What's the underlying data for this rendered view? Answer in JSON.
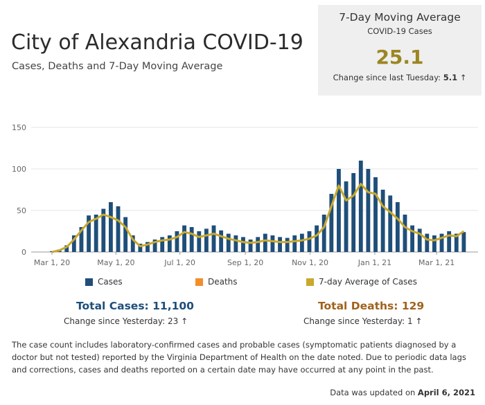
{
  "header": {
    "title": "City of Alexandria COVID-19",
    "subtitle": "Cases, Deaths and 7-Day Moving Average"
  },
  "kpi": {
    "title": "7-Day Moving Average",
    "subtitle": "COVID-19 Cases",
    "value": "25.1",
    "change_label": "Change since last Tuesday:",
    "change_value": "5.1",
    "change_arrow": "up-arrow-icon"
  },
  "legend": {
    "cases": "Cases",
    "deaths": "Deaths",
    "avg": "7-day Average of Cases"
  },
  "totals": {
    "cases_label": "Total Cases: 11,100",
    "cases_change": "Change since Yesterday: 23",
    "deaths_label": "Total Deaths: 129",
    "deaths_change": "Change since Yesterday: 1"
  },
  "footnote": "The case count includes laboratory-confirmed cases and probable cases (symptomatic patients diagnosed by a doctor but not tested) reported by the Virginia Department of Health on the date noted. Due to periodic data lags and corrections, cases and deaths reported on a certain date may have occurred at any point in the past.",
  "updated": {
    "label": "Data was updated on",
    "date": "April 6, 2021"
  },
  "colors": {
    "cases": "#1f4e79",
    "deaths": "#f28e2b",
    "avg": "#c8a92e",
    "total_cases": "#1f4e79",
    "total_deaths": "#a0621b",
    "kpi_value": "#9c8622"
  },
  "chart_data": {
    "type": "bar",
    "title": "",
    "xlabel": "",
    "ylabel": "",
    "ylim": [
      0,
      170
    ],
    "yticks": [
      0,
      50,
      100,
      150
    ],
    "x_tick_labels": [
      "Mar 1, 20",
      "May 1, 20",
      "Jul 1, 20",
      "Sep 1, 20",
      "Nov 1, 20",
      "Jan 1, 21",
      "Mar 1, 21"
    ],
    "x_tick_weeks": [
      0,
      8.7,
      17.4,
      26.3,
      35.1,
      43.9,
      52.3
    ],
    "x_unit": "weeks since Mar 1, 2020",
    "grid": true,
    "legend_position": "bottom",
    "series": [
      {
        "name": "Cases",
        "color": "#1f4e79",
        "x": [
          0,
          1,
          2,
          3,
          4,
          5,
          6,
          7,
          8,
          9,
          10,
          11,
          12,
          13,
          14,
          15,
          16,
          17,
          18,
          19,
          20,
          21,
          22,
          23,
          24,
          25,
          26,
          27,
          28,
          29,
          30,
          31,
          32,
          33,
          34,
          35,
          36,
          37,
          38,
          39,
          40,
          41,
          42,
          43,
          44,
          45,
          46,
          47,
          48,
          49,
          50,
          51,
          52,
          53,
          54,
          55,
          56
        ],
        "values": [
          1,
          3,
          8,
          20,
          30,
          44,
          45,
          52,
          60,
          55,
          42,
          20,
          10,
          12,
          15,
          18,
          20,
          25,
          32,
          30,
          25,
          28,
          32,
          26,
          22,
          20,
          18,
          15,
          18,
          22,
          20,
          18,
          17,
          20,
          22,
          25,
          32,
          45,
          70,
          100,
          85,
          95,
          110,
          100,
          90,
          75,
          68,
          60,
          45,
          32,
          28,
          22,
          20,
          22,
          25,
          22,
          24
        ]
      },
      {
        "name": "Deaths",
        "color": "#f28e2b",
        "x": [],
        "values": []
      },
      {
        "name": "7-day Average of Cases",
        "color": "#c8a92e",
        "x": [
          0,
          1,
          2,
          3,
          4,
          5,
          6,
          7,
          8,
          9,
          10,
          11,
          12,
          13,
          14,
          15,
          16,
          17,
          18,
          19,
          20,
          21,
          22,
          23,
          24,
          25,
          26,
          27,
          28,
          29,
          30,
          31,
          32,
          33,
          34,
          35,
          36,
          37,
          38,
          39,
          40,
          41,
          42,
          43,
          44,
          45,
          46,
          47,
          48,
          49,
          50,
          51,
          52,
          53,
          54,
          55,
          56
        ],
        "values": [
          0,
          2,
          6,
          15,
          26,
          36,
          40,
          45,
          42,
          38,
          30,
          15,
          7,
          9,
          12,
          14,
          15,
          18,
          24,
          22,
          18,
          20,
          22,
          19,
          16,
          14,
          12,
          11,
          12,
          14,
          13,
          12,
          12,
          13,
          14,
          16,
          20,
          30,
          55,
          80,
          62,
          68,
          82,
          72,
          70,
          55,
          48,
          40,
          30,
          25,
          22,
          15,
          14,
          17,
          20,
          19,
          25
        ]
      }
    ]
  }
}
